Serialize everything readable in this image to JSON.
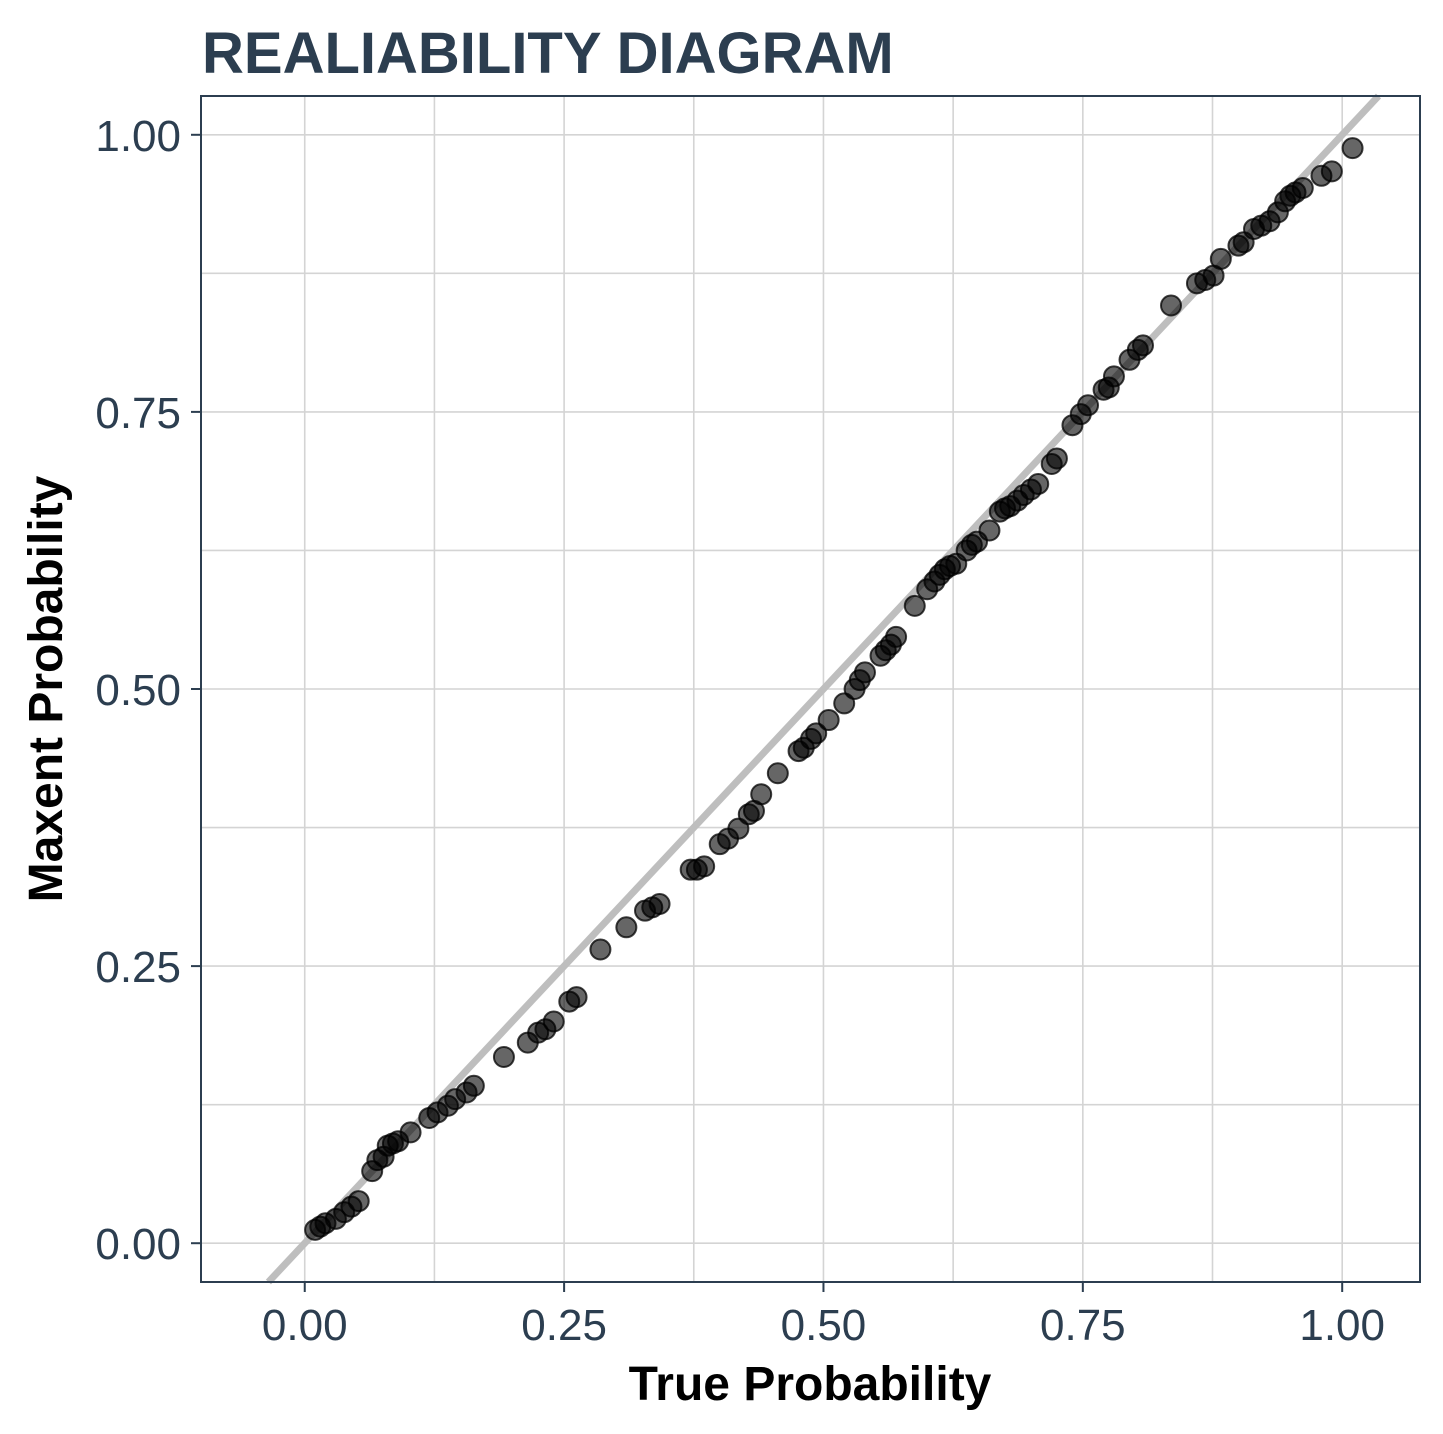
{
  "chart_data": {
    "type": "scatter",
    "title": "REALIABILITY DIAGRAM",
    "xlabel": "True Probability",
    "ylabel": "Maxent Probability",
    "xlim": [
      -0.1,
      1.075
    ],
    "ylim": [
      -0.035,
      1.035
    ],
    "xticks": [
      0.0,
      0.25,
      0.5,
      0.75,
      1.0
    ],
    "xtick_labels": [
      "0.00",
      "0.25",
      "0.50",
      "0.75",
      "1.00"
    ],
    "yticks": [
      0.0,
      0.25,
      0.5,
      0.75,
      1.0
    ],
    "ytick_labels": [
      "0.00",
      "0.25",
      "0.50",
      "0.75",
      "1.00"
    ],
    "minor_gridlines": [
      0.125,
      0.375,
      0.625,
      0.875
    ],
    "grid": true,
    "reference_line": "y = x",
    "reference_line_color": "#bebebe",
    "point_color": "#000000",
    "point_opacity": 0.6,
    "points": [
      {
        "x": 0.01,
        "y": 0.012
      },
      {
        "x": 0.015,
        "y": 0.015
      },
      {
        "x": 0.02,
        "y": 0.018
      },
      {
        "x": 0.03,
        "y": 0.022
      },
      {
        "x": 0.038,
        "y": 0.028
      },
      {
        "x": 0.045,
        "y": 0.033
      },
      {
        "x": 0.052,
        "y": 0.038
      },
      {
        "x": 0.065,
        "y": 0.065
      },
      {
        "x": 0.07,
        "y": 0.075
      },
      {
        "x": 0.076,
        "y": 0.078
      },
      {
        "x": 0.08,
        "y": 0.088
      },
      {
        "x": 0.085,
        "y": 0.09
      },
      {
        "x": 0.09,
        "y": 0.092
      },
      {
        "x": 0.102,
        "y": 0.1
      },
      {
        "x": 0.12,
        "y": 0.113
      },
      {
        "x": 0.128,
        "y": 0.118
      },
      {
        "x": 0.138,
        "y": 0.124
      },
      {
        "x": 0.145,
        "y": 0.13
      },
      {
        "x": 0.156,
        "y": 0.136
      },
      {
        "x": 0.163,
        "y": 0.142
      },
      {
        "x": 0.192,
        "y": 0.168
      },
      {
        "x": 0.215,
        "y": 0.181
      },
      {
        "x": 0.225,
        "y": 0.19
      },
      {
        "x": 0.232,
        "y": 0.193
      },
      {
        "x": 0.24,
        "y": 0.2
      },
      {
        "x": 0.255,
        "y": 0.218
      },
      {
        "x": 0.262,
        "y": 0.222
      },
      {
        "x": 0.285,
        "y": 0.265
      },
      {
        "x": 0.31,
        "y": 0.285
      },
      {
        "x": 0.328,
        "y": 0.3
      },
      {
        "x": 0.335,
        "y": 0.303
      },
      {
        "x": 0.342,
        "y": 0.306
      },
      {
        "x": 0.372,
        "y": 0.337
      },
      {
        "x": 0.378,
        "y": 0.337
      },
      {
        "x": 0.385,
        "y": 0.34
      },
      {
        "x": 0.4,
        "y": 0.36
      },
      {
        "x": 0.408,
        "y": 0.365
      },
      {
        "x": 0.418,
        "y": 0.374
      },
      {
        "x": 0.428,
        "y": 0.387
      },
      {
        "x": 0.433,
        "y": 0.39
      },
      {
        "x": 0.44,
        "y": 0.405
      },
      {
        "x": 0.456,
        "y": 0.424
      },
      {
        "x": 0.476,
        "y": 0.444
      },
      {
        "x": 0.481,
        "y": 0.447
      },
      {
        "x": 0.488,
        "y": 0.455
      },
      {
        "x": 0.493,
        "y": 0.46
      },
      {
        "x": 0.505,
        "y": 0.472
      },
      {
        "x": 0.52,
        "y": 0.487
      },
      {
        "x": 0.53,
        "y": 0.5
      },
      {
        "x": 0.535,
        "y": 0.508
      },
      {
        "x": 0.54,
        "y": 0.515
      },
      {
        "x": 0.555,
        "y": 0.53
      },
      {
        "x": 0.56,
        "y": 0.535
      },
      {
        "x": 0.565,
        "y": 0.54
      },
      {
        "x": 0.57,
        "y": 0.547
      },
      {
        "x": 0.588,
        "y": 0.575
      },
      {
        "x": 0.6,
        "y": 0.59
      },
      {
        "x": 0.607,
        "y": 0.597
      },
      {
        "x": 0.612,
        "y": 0.603
      },
      {
        "x": 0.617,
        "y": 0.608
      },
      {
        "x": 0.622,
        "y": 0.611
      },
      {
        "x": 0.628,
        "y": 0.613
      },
      {
        "x": 0.638,
        "y": 0.625
      },
      {
        "x": 0.643,
        "y": 0.63
      },
      {
        "x": 0.648,
        "y": 0.633
      },
      {
        "x": 0.66,
        "y": 0.643
      },
      {
        "x": 0.67,
        "y": 0.66
      },
      {
        "x": 0.675,
        "y": 0.663
      },
      {
        "x": 0.68,
        "y": 0.665
      },
      {
        "x": 0.687,
        "y": 0.67
      },
      {
        "x": 0.693,
        "y": 0.675
      },
      {
        "x": 0.7,
        "y": 0.68
      },
      {
        "x": 0.707,
        "y": 0.685
      },
      {
        "x": 0.72,
        "y": 0.703
      },
      {
        "x": 0.725,
        "y": 0.708
      },
      {
        "x": 0.74,
        "y": 0.738
      },
      {
        "x": 0.748,
        "y": 0.748
      },
      {
        "x": 0.755,
        "y": 0.756
      },
      {
        "x": 0.77,
        "y": 0.77
      },
      {
        "x": 0.775,
        "y": 0.772
      },
      {
        "x": 0.78,
        "y": 0.782
      },
      {
        "x": 0.795,
        "y": 0.797
      },
      {
        "x": 0.803,
        "y": 0.806
      },
      {
        "x": 0.808,
        "y": 0.81
      },
      {
        "x": 0.835,
        "y": 0.846
      },
      {
        "x": 0.86,
        "y": 0.866
      },
      {
        "x": 0.868,
        "y": 0.869
      },
      {
        "x": 0.876,
        "y": 0.873
      },
      {
        "x": 0.883,
        "y": 0.888
      },
      {
        "x": 0.9,
        "y": 0.9
      },
      {
        "x": 0.905,
        "y": 0.903
      },
      {
        "x": 0.915,
        "y": 0.915
      },
      {
        "x": 0.922,
        "y": 0.918
      },
      {
        "x": 0.93,
        "y": 0.922
      },
      {
        "x": 0.938,
        "y": 0.93
      },
      {
        "x": 0.945,
        "y": 0.94
      },
      {
        "x": 0.95,
        "y": 0.945
      },
      {
        "x": 0.955,
        "y": 0.948
      },
      {
        "x": 0.962,
        "y": 0.952
      },
      {
        "x": 0.98,
        "y": 0.963
      },
      {
        "x": 0.99,
        "y": 0.967
      },
      {
        "x": 1.01,
        "y": 0.988
      }
    ]
  }
}
